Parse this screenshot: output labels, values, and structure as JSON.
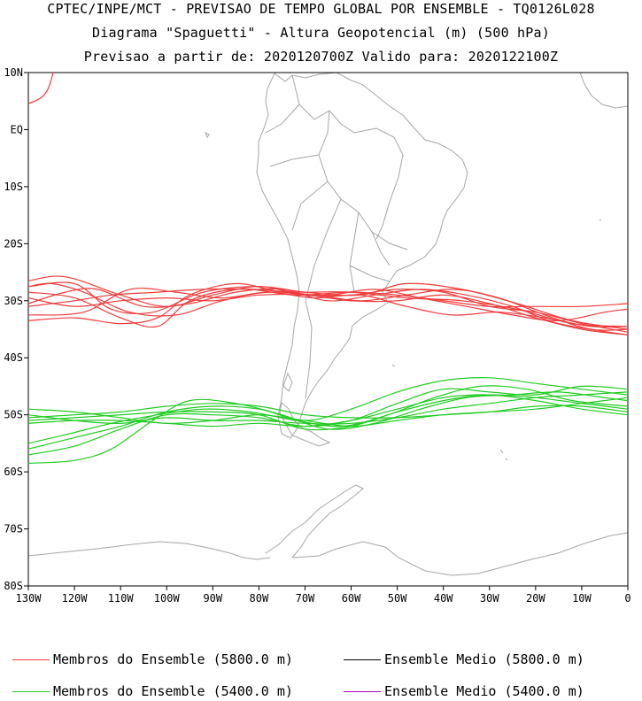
{
  "title": {
    "line1": "CPTEC/INPE/MCT - PREVISAO DE TEMPO GLOBAL POR ENSEMBLE - TQ0126L028",
    "line2": "Diagrama \"Spaguetti\" - Altura Geopotencial (m) (500 hPa)",
    "line3": "Previsao a partir de: 2020120700Z  Valido para: 2020122100Z"
  },
  "chart_data": {
    "type": "line",
    "xlim": [
      -130,
      0
    ],
    "ylim": [
      -80,
      10
    ],
    "x_ticks": [
      -130,
      -120,
      -110,
      -100,
      -90,
      -80,
      -70,
      -60,
      -50,
      -40,
      -30,
      -20,
      -10,
      0
    ],
    "x_tick_labels": [
      "130W",
      "120W",
      "110W",
      "100W",
      "90W",
      "80W",
      "70W",
      "60W",
      "50W",
      "40W",
      "30W",
      "20W",
      "10W",
      "0"
    ],
    "y_ticks": [
      10,
      0,
      -10,
      -20,
      -30,
      -40,
      -50,
      -60,
      -70,
      -80
    ],
    "y_tick_labels": [
      "10N",
      "EQ",
      "10S",
      "20S",
      "30S",
      "40S",
      "50S",
      "60S",
      "70S",
      "80S"
    ],
    "colors": {
      "members_5800": "#f03c3c",
      "members_5400": "#22cc22",
      "mean_5800": "#000000",
      "mean_5400": "#a000c0",
      "coast": "#a6a6a6"
    },
    "series": [
      {
        "name": "Membros do Ensemble (5800.0 m)",
        "color": "#f03c3c",
        "lines": [
          [
            [
              -130,
              -26.5
            ],
            [
              -122,
              -25.8
            ],
            [
              -110,
              -29
            ],
            [
              -100,
              -31
            ],
            [
              -90,
              -29
            ],
            [
              -80,
              -27.5
            ],
            [
              -70,
              -29
            ],
            [
              -60,
              -29
            ],
            [
              -50,
              -28
            ],
            [
              -40,
              -28.5
            ],
            [
              -30,
              -31
            ],
            [
              -20,
              -32
            ],
            [
              -10,
              -34
            ],
            [
              0,
              -35.5
            ]
          ],
          [
            [
              -130,
              -27.5
            ],
            [
              -120,
              -27
            ],
            [
              -112,
              -31.5
            ],
            [
              -103,
              -32
            ],
            [
              -92,
              -28.5
            ],
            [
              -80,
              -27.5
            ],
            [
              -70,
              -28.5
            ],
            [
              -58,
              -29
            ],
            [
              -48,
              -27
            ],
            [
              -36,
              -28
            ],
            [
              -24,
              -30.5
            ],
            [
              -12,
              -33.5
            ],
            [
              0,
              -35
            ]
          ],
          [
            [
              -130,
              -28.5
            ],
            [
              -120,
              -29.5
            ],
            [
              -110,
              -33
            ],
            [
              -102,
              -34.5
            ],
            [
              -95,
              -30
            ],
            [
              -85,
              -28
            ],
            [
              -72,
              -28.5
            ],
            [
              -60,
              -28.5
            ],
            [
              -48,
              -29.5
            ],
            [
              -36,
              -30
            ],
            [
              -24,
              -31.5
            ],
            [
              -12,
              -34
            ],
            [
              0,
              -34.5
            ]
          ],
          [
            [
              -130,
              -29.5
            ],
            [
              -120,
              -31
            ],
            [
              -110,
              -30
            ],
            [
              -100,
              -29.5
            ],
            [
              -90,
              -30
            ],
            [
              -80,
              -29
            ],
            [
              -70,
              -29
            ],
            [
              -60,
              -30
            ],
            [
              -50,
              -30
            ],
            [
              -40,
              -29
            ],
            [
              -30,
              -30.5
            ],
            [
              -20,
              -33
            ],
            [
              -10,
              -35
            ],
            [
              0,
              -36
            ]
          ],
          [
            [
              -130,
              -31
            ],
            [
              -120,
              -30
            ],
            [
              -112,
              -29
            ],
            [
              -102,
              -28.5
            ],
            [
              -92,
              -28
            ],
            [
              -82,
              -28
            ],
            [
              -72,
              -29
            ],
            [
              -60,
              -28.5
            ],
            [
              -50,
              -29
            ],
            [
              -40,
              -30
            ],
            [
              -30,
              -31
            ],
            [
              -20,
              -31
            ],
            [
              -10,
              -31
            ],
            [
              0,
              -30.5
            ]
          ],
          [
            [
              -130,
              -32.5
            ],
            [
              -118,
              -32
            ],
            [
              -108,
              -28
            ],
            [
              -98,
              -28.5
            ],
            [
              -88,
              -29.5
            ],
            [
              -78,
              -28.5
            ],
            [
              -68,
              -29.5
            ],
            [
              -58,
              -29
            ],
            [
              -48,
              -31
            ],
            [
              -38,
              -32.5
            ],
            [
              -28,
              -32
            ],
            [
              -18,
              -33
            ],
            [
              -8,
              -34.5
            ],
            [
              0,
              -34.5
            ]
          ],
          [
            [
              -130,
              -33.5
            ],
            [
              -120,
              -33
            ],
            [
              -110,
              -34
            ],
            [
              -102,
              -33
            ],
            [
              -95,
              -29
            ],
            [
              -85,
              -27
            ],
            [
              -75,
              -28.5
            ],
            [
              -65,
              -29
            ],
            [
              -55,
              -28
            ],
            [
              -45,
              -29.5
            ],
            [
              -35,
              -31
            ],
            [
              -25,
              -32.5
            ],
            [
              -15,
              -33.5
            ],
            [
              -5,
              -32
            ],
            [
              0,
              -31.5
            ]
          ],
          [
            [
              -130,
              -30.5
            ],
            [
              -122,
              -28.5
            ],
            [
              -115,
              -28
            ],
            [
              -105,
              -31
            ],
            [
              -95,
              -30.5
            ],
            [
              -85,
              -28.5
            ],
            [
              -75,
              -28
            ],
            [
              -65,
              -30
            ],
            [
              -55,
              -29
            ],
            [
              -45,
              -28
            ],
            [
              -35,
              -29
            ],
            [
              -25,
              -31
            ],
            [
              -15,
              -34
            ],
            [
              0,
              -36
            ]
          ],
          [
            [
              -130,
              -27.5
            ],
            [
              -125,
              -27
            ],
            [
              -118,
              -28.5
            ],
            [
              -108,
              -32
            ],
            [
              -98,
              -32.5
            ],
            [
              -88,
              -30
            ],
            [
              -78,
              -28.5
            ],
            [
              -68,
              -29
            ],
            [
              -58,
              -30
            ],
            [
              -48,
              -29
            ],
            [
              -38,
              -28
            ],
            [
              -28,
              -29.5
            ],
            [
              -18,
              -32.5
            ],
            [
              -8,
              -35
            ],
            [
              0,
              -35
            ]
          ]
        ]
      },
      {
        "name": "Membros do Ensemble (5400.0 m)",
        "color": "#22cc22",
        "lines": [
          [
            [
              -130,
              -56
            ],
            [
              -120,
              -54
            ],
            [
              -110,
              -52
            ],
            [
              -100,
              -49.5
            ],
            [
              -90,
              -48.5
            ],
            [
              -80,
              -49
            ],
            [
              -70,
              -51
            ],
            [
              -60,
              -49
            ],
            [
              -50,
              -46
            ],
            [
              -40,
              -44
            ],
            [
              -30,
              -43.5
            ],
            [
              -20,
              -44.5
            ],
            [
              -10,
              -45.5
            ],
            [
              0,
              -46.5
            ]
          ],
          [
            [
              -130,
              -57
            ],
            [
              -120,
              -55.5
            ],
            [
              -110,
              -52.5
            ],
            [
              -100,
              -50
            ],
            [
              -90,
              -50
            ],
            [
              -80,
              -50.5
            ],
            [
              -70,
              -52
            ],
            [
              -60,
              -51
            ],
            [
              -50,
              -48
            ],
            [
              -40,
              -45.5
            ],
            [
              -30,
              -46
            ],
            [
              -20,
              -46.5
            ],
            [
              -10,
              -45
            ],
            [
              0,
              -45.5
            ]
          ],
          [
            [
              -130,
              -58.5
            ],
            [
              -120,
              -58
            ],
            [
              -112,
              -56
            ],
            [
              -103,
              -51
            ],
            [
              -95,
              -47.5
            ],
            [
              -85,
              -48
            ],
            [
              -75,
              -50
            ],
            [
              -65,
              -52.5
            ],
            [
              -55,
              -51.5
            ],
            [
              -45,
              -49
            ],
            [
              -35,
              -47
            ],
            [
              -25,
              -46.5
            ],
            [
              -15,
              -46
            ],
            [
              -5,
              -47
            ],
            [
              0,
              -47.5
            ]
          ],
          [
            [
              -130,
              -50
            ],
            [
              -120,
              -51
            ],
            [
              -110,
              -51.5
            ],
            [
              -100,
              -50.5
            ],
            [
              -90,
              -51
            ],
            [
              -80,
              -51
            ],
            [
              -70,
              -51.5
            ],
            [
              -60,
              -51.5
            ],
            [
              -50,
              -50.5
            ],
            [
              -40,
              -49
            ],
            [
              -30,
              -48
            ],
            [
              -20,
              -47
            ],
            [
              -10,
              -46.5
            ],
            [
              0,
              -46
            ]
          ],
          [
            [
              -130,
              -51
            ],
            [
              -120,
              -50.5
            ],
            [
              -110,
              -50
            ],
            [
              -100,
              -49.5
            ],
            [
              -90,
              -49.5
            ],
            [
              -80,
              -50
            ],
            [
              -70,
              -52.5
            ],
            [
              -60,
              -52
            ],
            [
              -50,
              -49.5
            ],
            [
              -40,
              -47.5
            ],
            [
              -30,
              -46.5
            ],
            [
              -20,
              -47
            ],
            [
              -10,
              -48
            ],
            [
              0,
              -49
            ]
          ],
          [
            [
              -130,
              -49
            ],
            [
              -120,
              -49.5
            ],
            [
              -110,
              -50.5
            ],
            [
              -100,
              -51.5
            ],
            [
              -90,
              -51
            ],
            [
              -80,
              -50
            ],
            [
              -70,
              -51
            ],
            [
              -60,
              -52
            ],
            [
              -50,
              -51
            ],
            [
              -40,
              -50
            ],
            [
              -30,
              -49.5
            ],
            [
              -20,
              -49
            ],
            [
              -10,
              -48
            ],
            [
              0,
              -47
            ]
          ],
          [
            [
              -130,
              -50.5
            ],
            [
              -120,
              -50
            ],
            [
              -110,
              -49.5
            ],
            [
              -100,
              -48.5
            ],
            [
              -90,
              -48
            ],
            [
              -80,
              -48.5
            ],
            [
              -70,
              -50
            ],
            [
              -60,
              -50.5
            ],
            [
              -50,
              -50.5
            ],
            [
              -40,
              -50
            ],
            [
              -30,
              -49.5
            ],
            [
              -20,
              -48.5
            ],
            [
              -10,
              -48.5
            ],
            [
              0,
              -49.5
            ]
          ],
          [
            [
              -130,
              -51.5
            ],
            [
              -120,
              -51
            ],
            [
              -110,
              -51
            ],
            [
              -100,
              -51.5
            ],
            [
              -90,
              -52
            ],
            [
              -80,
              -51.5
            ],
            [
              -70,
              -52
            ],
            [
              -60,
              -51
            ],
            [
              -50,
              -49
            ],
            [
              -40,
              -47
            ],
            [
              -30,
              -46.5
            ],
            [
              -20,
              -47.5
            ],
            [
              -10,
              -49
            ],
            [
              0,
              -50
            ]
          ],
          [
            [
              -130,
              -55
            ],
            [
              -122,
              -53.5
            ],
            [
              -112,
              -51.5
            ],
            [
              -102,
              -50
            ],
            [
              -92,
              -49
            ],
            [
              -82,
              -49.5
            ],
            [
              -72,
              -51
            ],
            [
              -62,
              -52
            ],
            [
              -52,
              -50
            ],
            [
              -42,
              -47
            ],
            [
              -32,
              -45
            ],
            [
              -22,
              -45.5
            ],
            [
              -12,
              -47.5
            ],
            [
              0,
              -48.5
            ]
          ]
        ]
      },
      {
        "name": "Ensemble Medio (5800.0 m)",
        "color": "#000000",
        "lines": []
      },
      {
        "name": "Ensemble Medio (5400.0 m)",
        "color": "#a000c0",
        "lines": []
      }
    ],
    "title": "",
    "xlabel": "",
    "ylabel": ""
  },
  "legend": {
    "items": [
      {
        "label": "Membros do Ensemble (5800.0 m)",
        "color": "#f03c3c"
      },
      {
        "label": "Ensemble Medio (5800.0 m)",
        "color": "#000000"
      },
      {
        "label": "Membros do Ensemble (5400.0 m)",
        "color": "#22cc22"
      },
      {
        "label": "Ensemble Medio (5400.0 m)",
        "color": "#a000c0"
      }
    ]
  }
}
